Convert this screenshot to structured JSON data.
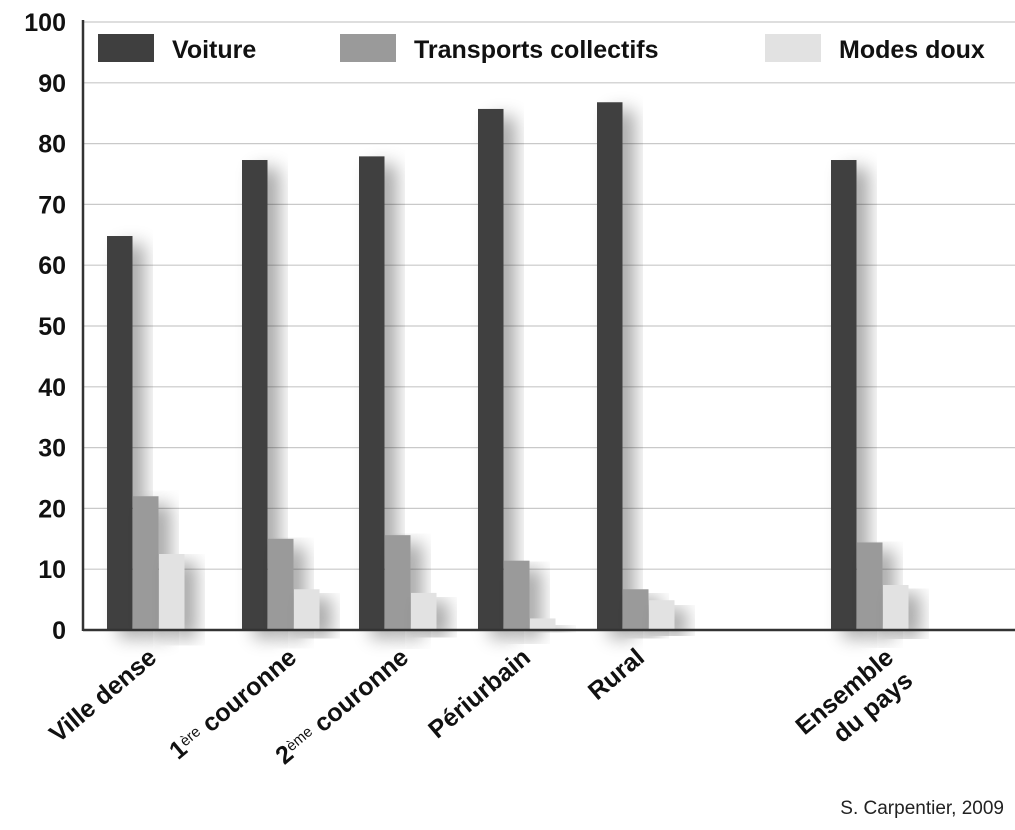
{
  "chart_data": {
    "type": "bar",
    "title": "",
    "xlabel": "",
    "ylabel": "",
    "ylim": [
      0,
      100
    ],
    "yticks": [
      "0",
      "10",
      "20",
      "30",
      "40",
      "50",
      "60",
      "70",
      "80",
      "90",
      "100"
    ],
    "grid": true,
    "legend_position": "top",
    "categories": [
      {
        "id": "ville",
        "parts": [
          {
            "t": "Ville dense"
          }
        ]
      },
      {
        "id": "c1",
        "parts": [
          {
            "t": "1"
          },
          {
            "t": "ère",
            "sup": true
          },
          {
            "t": " couronne"
          }
        ]
      },
      {
        "id": "c2",
        "parts": [
          {
            "t": "2"
          },
          {
            "t": "ème",
            "sup": true
          },
          {
            "t": " couronne"
          }
        ]
      },
      {
        "id": "peri",
        "parts": [
          {
            "t": "Périurbain"
          }
        ]
      },
      {
        "id": "rural",
        "parts": [
          {
            "t": "Rural"
          }
        ]
      },
      {
        "id": "ens",
        "lines": [
          "Ensemble",
          "du pays"
        ]
      }
    ],
    "series": [
      {
        "name": "Voiture",
        "color": "#3f3f3f",
        "values": [
          64.8,
          77.3,
          77.9,
          85.7,
          86.8,
          77.3
        ]
      },
      {
        "name": "Transports collectifs",
        "color": "#9a9a9a",
        "values": [
          22.0,
          15.0,
          15.6,
          11.4,
          6.7,
          14.4
        ]
      },
      {
        "name": "Modes doux",
        "color": "#e2e2e2",
        "values": [
          12.5,
          6.7,
          6.1,
          1.9,
          4.9,
          7.4
        ]
      }
    ]
  },
  "source": "S. Carpentier, 2009"
}
